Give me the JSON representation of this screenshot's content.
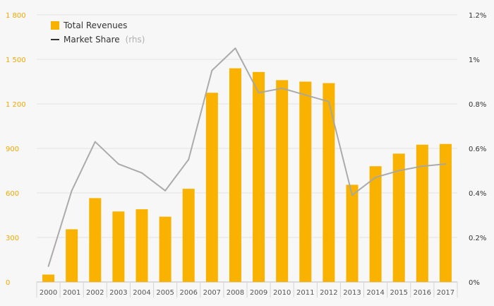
{
  "chart_data": {
    "type": "bar",
    "categories": [
      "2000",
      "2001",
      "2002",
      "2003",
      "2004",
      "2005",
      "2006",
      "2007",
      "2008",
      "2009",
      "2010",
      "2011",
      "2012",
      "2013",
      "2014",
      "2015",
      "2016",
      "2017"
    ],
    "series": [
      {
        "name": "Total Revenues",
        "type": "bar",
        "axis": "left",
        "color": "#f9b200",
        "values": [
          50,
          355,
          565,
          475,
          490,
          440,
          628,
          1275,
          1440,
          1415,
          1360,
          1350,
          1340,
          655,
          780,
          865,
          925,
          930
        ]
      },
      {
        "name": "Market Share",
        "type": "line",
        "axis": "right",
        "color": "#a6a6a6",
        "values": [
          0.0007,
          0.0041,
          0.0063,
          0.0053,
          0.0049,
          0.0041,
          0.0055,
          0.0095,
          0.0105,
          0.0085,
          0.0087,
          0.0084,
          0.0081,
          0.0039,
          0.0047,
          0.005,
          0.0052,
          0.0053
        ]
      }
    ],
    "y_left": {
      "ylim": [
        0,
        1800
      ],
      "ticks": [
        0,
        300,
        600,
        900,
        1200,
        1500,
        1800
      ],
      "tick_labels": [
        "0",
        "300",
        "600",
        "900",
        "1 200",
        "1 500",
        "1 800"
      ]
    },
    "y_right": {
      "ylim": [
        0,
        0.012
      ],
      "ticks": [
        0,
        0.002,
        0.004,
        0.006,
        0.008,
        0.01,
        0.012
      ],
      "tick_labels": [
        "0%",
        "0.2%",
        "0.4%",
        "0.6%",
        "0.8%",
        "1%",
        "1.2%"
      ]
    },
    "grid": true,
    "legend": {
      "position": "top-left",
      "items": [
        {
          "label": "Total Revenues",
          "suffix": "",
          "color": "#f9b200",
          "marker": "square"
        },
        {
          "label": "Market Share",
          "suffix": "(rhs)",
          "color": "#333333",
          "marker": "line"
        }
      ]
    },
    "title": "",
    "xlabel": "",
    "ylabel": ""
  }
}
